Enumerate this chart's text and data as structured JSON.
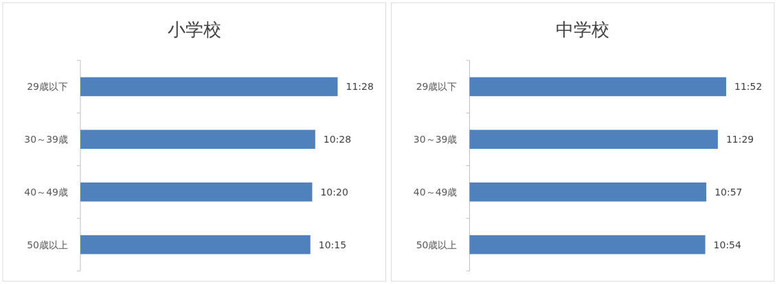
{
  "chart_data": [
    {
      "type": "bar",
      "orientation": "horizontal",
      "title": "小学校",
      "categories": [
        "29歳以下",
        "30～39歳",
        "40～49歳",
        "50歳以上"
      ],
      "series": [
        {
          "color": "#4f81bd",
          "values": [
            11.467,
            10.467,
            10.333,
            10.25
          ],
          "value_labels": [
            "11:28",
            "10:28",
            "10:20",
            "10:15"
          ]
        }
      ]
    },
    {
      "type": "bar",
      "orientation": "horizontal",
      "title": "中学校",
      "categories": [
        "29歳以下",
        "30～39歳",
        "40～49歳",
        "50歳以上"
      ],
      "series": [
        {
          "color": "#4f81bd",
          "values": [
            11.867,
            11.483,
            10.95,
            10.9
          ],
          "value_labels": [
            "11:52",
            "11:29",
            "10:57",
            "10:54"
          ]
        }
      ]
    }
  ]
}
